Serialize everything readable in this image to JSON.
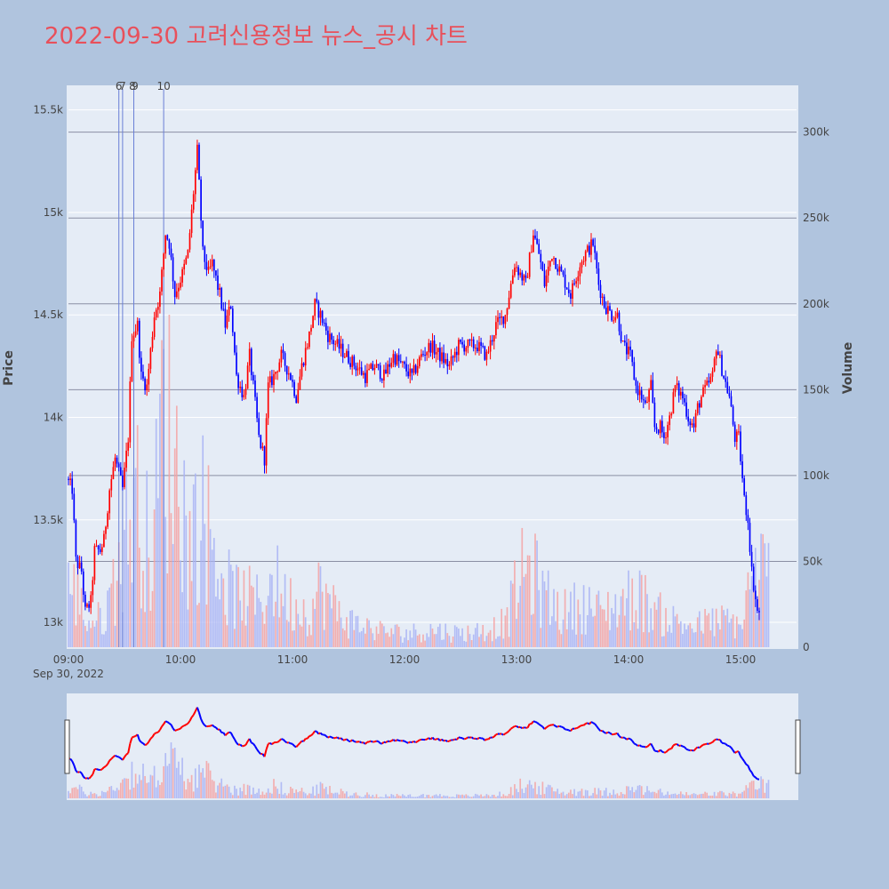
{
  "chart_data": {
    "type": "candlestick",
    "title": "2022-09-30 고려신용정보 뉴스_공시 차트",
    "date_label": "Sep 30, 2022",
    "ylabel": "Price",
    "y2label": "Volume",
    "x_range": [
      "09:00",
      "15:30"
    ],
    "x_ticks": [
      "09:00",
      "10:00",
      "11:00",
      "12:00",
      "13:00",
      "14:00",
      "15:00"
    ],
    "price_range": [
      12870,
      15620
    ],
    "price_ticks": [
      {
        "value": 13000,
        "label": "13k"
      },
      {
        "value": 13500,
        "label": "13.5k"
      },
      {
        "value": 14000,
        "label": "14k"
      },
      {
        "value": 14500,
        "label": "14.5k"
      },
      {
        "value": 15000,
        "label": "15k"
      },
      {
        "value": 15500,
        "label": "15.5k"
      }
    ],
    "volume_range": [
      0,
      320000
    ],
    "volume_ticks": [
      {
        "value": 0,
        "label": "0"
      },
      {
        "value": 50000,
        "label": "50k"
      },
      {
        "value": 100000,
        "label": "100k"
      },
      {
        "value": 150000,
        "label": "150k"
      },
      {
        "value": 200000,
        "label": "200k"
      },
      {
        "value": 250000,
        "label": "250k"
      },
      {
        "value": 300000,
        "label": "300k"
      }
    ],
    "up_color": "#ff0000",
    "down_color": "#0000ff",
    "news_markers": [
      {
        "label": "6",
        "time": "09:27"
      },
      {
        "label": "7",
        "time": "09:29"
      },
      {
        "label": "8",
        "time": "09:35"
      },
      {
        "label": "9",
        "time": "09:35"
      },
      {
        "label": "10",
        "time": "09:51"
      }
    ],
    "price_path": [
      [
        "09:00",
        13700
      ],
      [
        "09:03",
        13650
      ],
      [
        "09:05",
        13300
      ],
      [
        "09:08",
        13250
      ],
      [
        "09:10",
        13050
      ],
      [
        "09:13",
        13100
      ],
      [
        "09:15",
        13350
      ],
      [
        "09:18",
        13350
      ],
      [
        "09:20",
        13400
      ],
      [
        "09:23",
        13650
      ],
      [
        "09:26",
        13800
      ],
      [
        "09:30",
        13650
      ],
      [
        "09:33",
        13900
      ],
      [
        "09:35",
        14400
      ],
      [
        "09:38",
        14450
      ],
      [
        "09:40",
        14200
      ],
      [
        "09:43",
        14150
      ],
      [
        "09:47",
        14500
      ],
      [
        "09:50",
        14600
      ],
      [
        "09:53",
        14900
      ],
      [
        "09:55",
        14850
      ],
      [
        "09:58",
        14600
      ],
      [
        "10:02",
        14700
      ],
      [
        "10:05",
        14800
      ],
      [
        "10:07",
        15000
      ],
      [
        "10:10",
        15300
      ],
      [
        "10:13",
        14800
      ],
      [
        "10:16",
        14700
      ],
      [
        "10:18",
        14750
      ],
      [
        "10:22",
        14600
      ],
      [
        "10:25",
        14450
      ],
      [
        "10:28",
        14550
      ],
      [
        "10:31",
        14200
      ],
      [
        "10:35",
        14100
      ],
      [
        "10:38",
        14300
      ],
      [
        "10:40",
        14150
      ],
      [
        "10:43",
        13900
      ],
      [
        "10:46",
        13800
      ],
      [
        "10:48",
        14150
      ],
      [
        "10:51",
        14200
      ],
      [
        "10:55",
        14300
      ],
      [
        "11:00",
        14200
      ],
      [
        "11:03",
        14100
      ],
      [
        "11:06",
        14250
      ],
      [
        "11:10",
        14400
      ],
      [
        "11:13",
        14550
      ],
      [
        "11:16",
        14500
      ],
      [
        "11:20",
        14400
      ],
      [
        "11:25",
        14350
      ],
      [
        "11:30",
        14300
      ],
      [
        "11:35",
        14250
      ],
      [
        "11:40",
        14200
      ],
      [
        "11:45",
        14250
      ],
      [
        "11:50",
        14200
      ],
      [
        "11:55",
        14300
      ],
      [
        "12:00",
        14250
      ],
      [
        "12:05",
        14200
      ],
      [
        "12:10",
        14300
      ],
      [
        "12:15",
        14350
      ],
      [
        "12:20",
        14300
      ],
      [
        "12:25",
        14250
      ],
      [
        "12:30",
        14350
      ],
      [
        "12:35",
        14350
      ],
      [
        "12:40",
        14350
      ],
      [
        "12:45",
        14300
      ],
      [
        "12:50",
        14450
      ],
      [
        "12:55",
        14500
      ],
      [
        "13:00",
        14750
      ],
      [
        "13:03",
        14700
      ],
      [
        "13:06",
        14650
      ],
      [
        "13:10",
        14900
      ],
      [
        "13:13",
        14800
      ],
      [
        "13:16",
        14650
      ],
      [
        "13:20",
        14800
      ],
      [
        "13:25",
        14700
      ],
      [
        "13:30",
        14600
      ],
      [
        "13:35",
        14750
      ],
      [
        "13:38",
        14800
      ],
      [
        "13:42",
        14850
      ],
      [
        "13:45",
        14650
      ],
      [
        "13:48",
        14550
      ],
      [
        "13:52",
        14500
      ],
      [
        "13:55",
        14500
      ],
      [
        "13:58",
        14350
      ],
      [
        "14:02",
        14300
      ],
      [
        "14:05",
        14150
      ],
      [
        "14:08",
        14100
      ],
      [
        "14:10",
        14050
      ],
      [
        "14:13",
        14150
      ],
      [
        "14:15",
        13950
      ],
      [
        "14:18",
        13950
      ],
      [
        "14:20",
        13900
      ],
      [
        "14:23",
        14000
      ],
      [
        "14:26",
        14150
      ],
      [
        "14:30",
        14100
      ],
      [
        "14:33",
        14000
      ],
      [
        "14:36",
        13950
      ],
      [
        "14:38",
        14050
      ],
      [
        "14:40",
        14100
      ],
      [
        "14:43",
        14150
      ],
      [
        "14:46",
        14200
      ],
      [
        "14:48",
        14350
      ],
      [
        "14:52",
        14200
      ],
      [
        "14:55",
        14100
      ],
      [
        "14:58",
        13900
      ],
      [
        "15:00",
        13900
      ],
      [
        "15:03",
        13600
      ],
      [
        "15:05",
        13500
      ],
      [
        "15:07",
        13250
      ],
      [
        "15:10",
        13050
      ]
    ],
    "volume_path": [
      [
        "09:00",
        35000
      ],
      [
        "09:05",
        30000
      ],
      [
        "09:10",
        15000
      ],
      [
        "09:15",
        15000
      ],
      [
        "09:20",
        20000
      ],
      [
        "09:25",
        40000
      ],
      [
        "09:30",
        60000
      ],
      [
        "09:35",
        90000
      ],
      [
        "09:40",
        70000
      ],
      [
        "09:45",
        50000
      ],
      [
        "09:50",
        130000
      ],
      [
        "09:55",
        120000
      ],
      [
        "10:00",
        90000
      ],
      [
        "10:05",
        60000
      ],
      [
        "10:10",
        80000
      ],
      [
        "10:15",
        70000
      ],
      [
        "10:20",
        50000
      ],
      [
        "10:25",
        35000
      ],
      [
        "10:30",
        30000
      ],
      [
        "10:35",
        30000
      ],
      [
        "10:40",
        25000
      ],
      [
        "10:45",
        30000
      ],
      [
        "10:50",
        40000
      ],
      [
        "10:55",
        30000
      ],
      [
        "11:00",
        25000
      ],
      [
        "11:10",
        20000
      ],
      [
        "11:15",
        35000
      ],
      [
        "11:20",
        25000
      ],
      [
        "11:30",
        15000
      ],
      [
        "11:45",
        10000
      ],
      [
        "12:00",
        8000
      ],
      [
        "12:15",
        10000
      ],
      [
        "12:30",
        8000
      ],
      [
        "12:45",
        10000
      ],
      [
        "12:55",
        15000
      ],
      [
        "13:00",
        35000
      ],
      [
        "13:05",
        45000
      ],
      [
        "13:10",
        40000
      ],
      [
        "13:15",
        30000
      ],
      [
        "13:25",
        20000
      ],
      [
        "13:35",
        25000
      ],
      [
        "13:45",
        20000
      ],
      [
        "13:55",
        25000
      ],
      [
        "14:05",
        30000
      ],
      [
        "14:15",
        20000
      ],
      [
        "14:25",
        15000
      ],
      [
        "14:35",
        12000
      ],
      [
        "14:45",
        15000
      ],
      [
        "14:55",
        15000
      ],
      [
        "15:00",
        12000
      ],
      [
        "15:05",
        35000
      ],
      [
        "15:10",
        45000
      ],
      [
        "15:15",
        40000
      ]
    ]
  }
}
